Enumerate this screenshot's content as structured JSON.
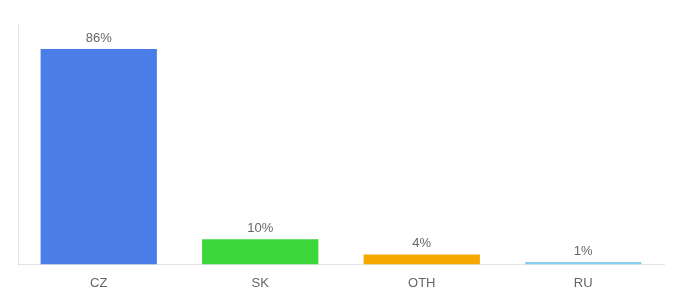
{
  "chart_data": {
    "type": "bar",
    "categories": [
      "CZ",
      "SK",
      "OTH",
      "RU"
    ],
    "values": [
      86,
      10,
      4,
      1
    ],
    "value_labels": [
      "86%",
      "10%",
      "4%",
      "1%"
    ],
    "colors": [
      "#4a7de8",
      "#3ad63a",
      "#f5a800",
      "#87ceeb"
    ],
    "ylim": [
      0,
      96
    ],
    "grid": false,
    "data_labels": true,
    "tick_labels": "x"
  }
}
